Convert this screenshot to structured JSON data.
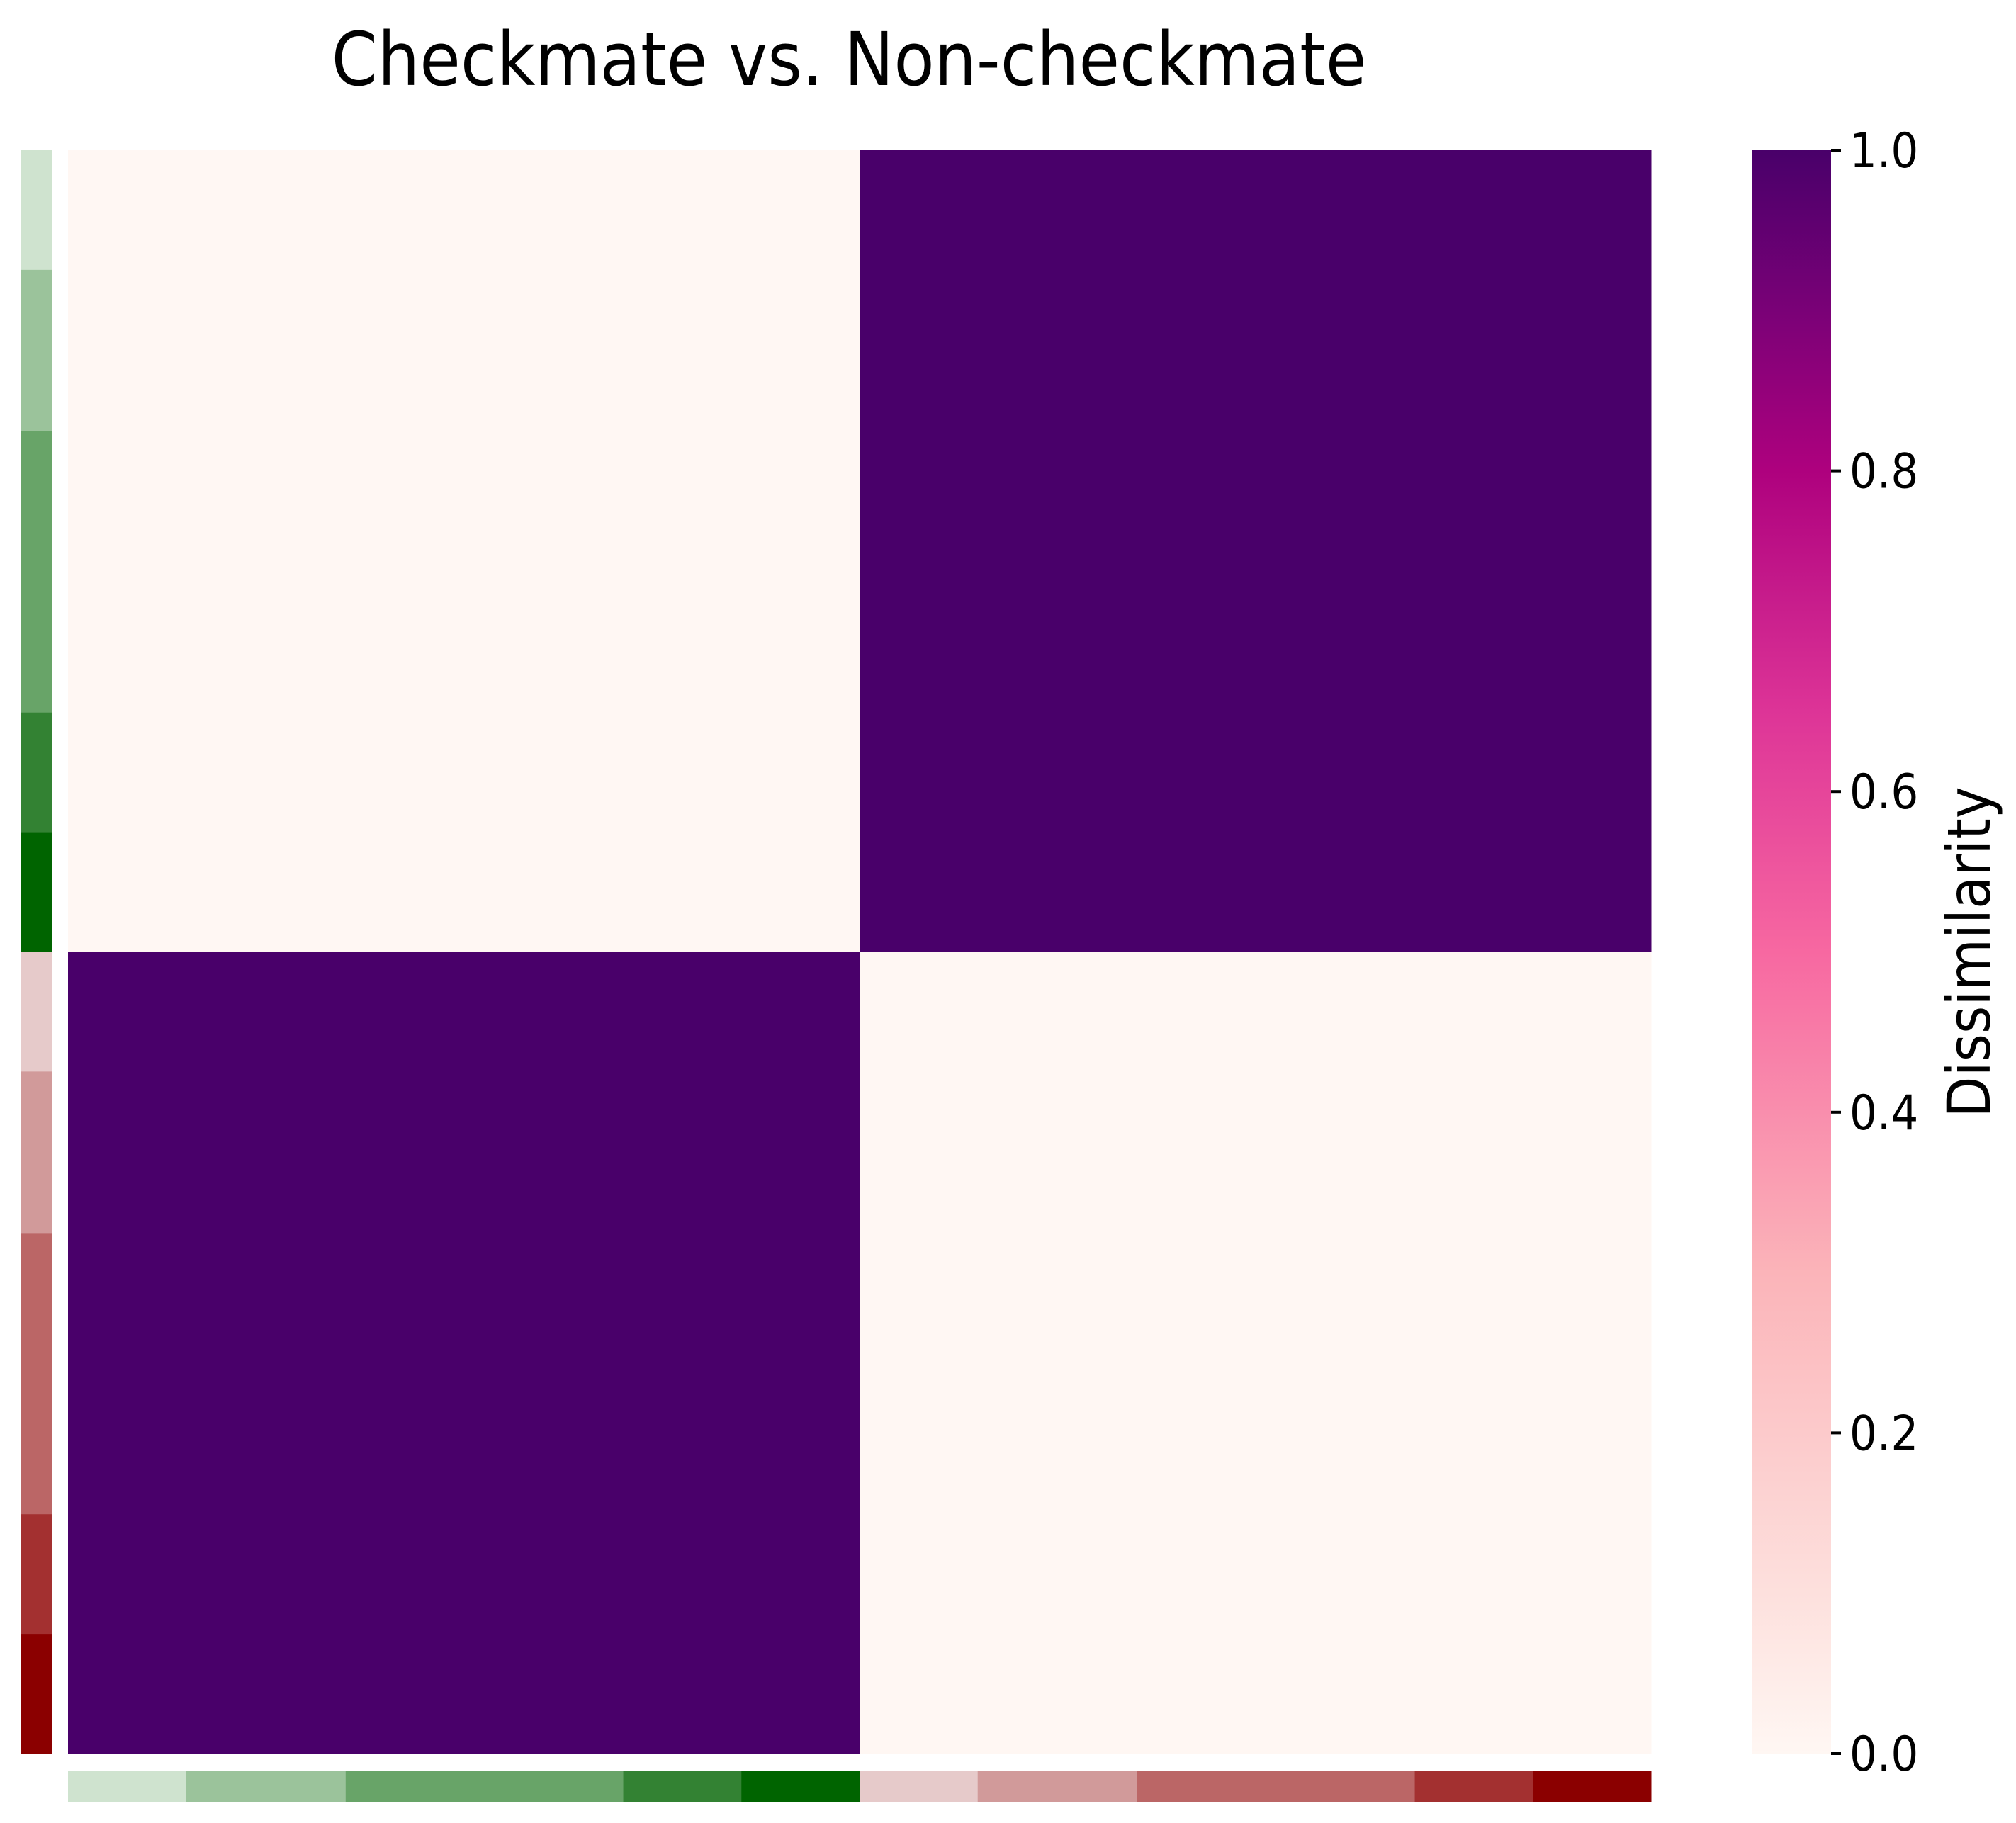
{
  "chart_data": {
    "type": "heatmap",
    "title": "Checkmate vs. Non-checkmate",
    "matrix": [
      [
        0.0,
        1.0
      ],
      [
        1.0,
        0.0
      ]
    ],
    "row_annotation": [
      {
        "color": "#cfe3cf",
        "weight": 1
      },
      {
        "color": "#9bc39b",
        "weight": 1.35
      },
      {
        "color": "#68a468",
        "weight": 2.35
      },
      {
        "color": "#338233",
        "weight": 1
      },
      {
        "color": "#006400",
        "weight": 1
      },
      {
        "color": "#e6caca",
        "weight": 1
      },
      {
        "color": "#d19a9a",
        "weight": 1.35
      },
      {
        "color": "#bb6666",
        "weight": 2.35
      },
      {
        "color": "#a33030",
        "weight": 1
      },
      {
        "color": "#8b0000",
        "weight": 1
      }
    ],
    "colorbar": {
      "label": "Dissimilarity",
      "ticks": [
        "0.0",
        "0.2",
        "0.4",
        "0.6",
        "0.8",
        "1.0"
      ],
      "range": [
        0.0,
        1.0
      ],
      "stops": [
        {
          "v": 0.0,
          "color": "#fff7f3"
        },
        {
          "v": 0.1,
          "color": "#fde0dd"
        },
        {
          "v": 0.3,
          "color": "#fbb4b9"
        },
        {
          "v": 0.5,
          "color": "#f768a1"
        },
        {
          "v": 0.65,
          "color": "#dd3497"
        },
        {
          "v": 0.8,
          "color": "#ae017e"
        },
        {
          "v": 0.9,
          "color": "#7a0177"
        },
        {
          "v": 1.0,
          "color": "#49006a"
        }
      ]
    }
  }
}
